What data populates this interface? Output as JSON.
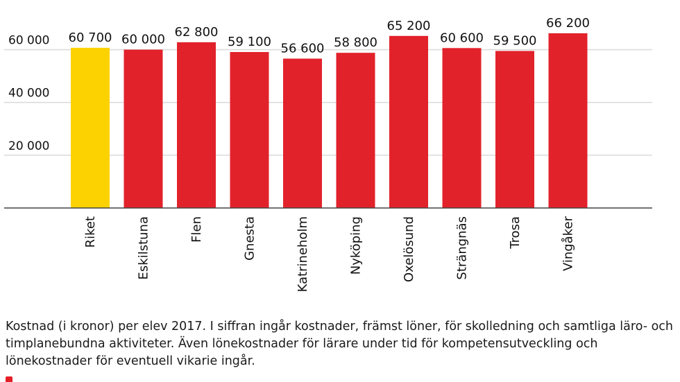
{
  "chart_data": {
    "type": "bar",
    "categories": [
      "Riket",
      "Eskilstuna",
      "Flen",
      "Gnesta",
      "Katrineholm",
      "Nyköping",
      "Oxelösund",
      "Strängnäs",
      "Trosa",
      "Vingåker"
    ],
    "values": [
      60700,
      60000,
      62800,
      59100,
      56600,
      58800,
      65200,
      60600,
      59500,
      66200
    ],
    "value_labels": [
      "60 700",
      "60 000",
      "62 800",
      "59 100",
      "56 600",
      "58 800",
      "65 200",
      "60 600",
      "59 500",
      "66 200"
    ],
    "highlight_index": 0,
    "colors": {
      "highlight": "#fcd200",
      "bar": "#e2222b",
      "gridline": "#d9d9d9",
      "axis": "#444444"
    },
    "yticks": [
      20000,
      40000,
      60000
    ],
    "ytick_labels": [
      "20 000",
      "40 000",
      "60 000"
    ],
    "ylim": [
      0,
      66200
    ],
    "grid": true,
    "xlabel": "",
    "ylabel": ""
  },
  "caption": "Kostnad (i kronor) per elev 2017. I siffran ingår kostnader, främst löner, för skolledning och samtliga läro- och timplanebundna aktiviteter. Även lönekostnader för lärare under tid för kompetensutveckling och lönekostnader för eventuell vikarie ingår."
}
